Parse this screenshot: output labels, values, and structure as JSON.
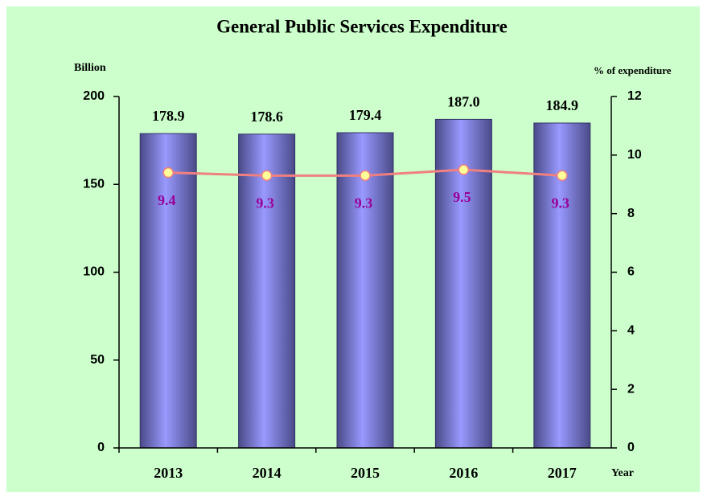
{
  "chart_data": {
    "type": "bar",
    "title": "General Public Services Expenditure",
    "y_label": "Billion",
    "y2_label": "% of expenditure",
    "x_label": "Year",
    "categories": [
      "2013",
      "2014",
      "2015",
      "2016",
      "2017"
    ],
    "series": [
      {
        "color": "#9999ff",
        "values": [
          178.9,
          178.6,
          179.4,
          187.0,
          184.9
        ],
        "value_labels": [
          "178.9",
          "178.6",
          "179.4",
          "187.0",
          "184.9"
        ]
      },
      {
        "type": "line",
        "axis": "y2",
        "color": "#f08080",
        "marker_color": "#ffff99",
        "label_color": "#990099",
        "values": [
          9.4,
          9.3,
          9.3,
          9.5,
          9.3
        ]
      }
    ],
    "ylim": [
      0,
      200
    ],
    "yticks": [
      0,
      50,
      100,
      150,
      200
    ],
    "y2lim": [
      0,
      12
    ],
    "y2ticks": [
      0,
      2,
      4,
      6,
      8,
      10,
      12
    ],
    "grid": false
  }
}
